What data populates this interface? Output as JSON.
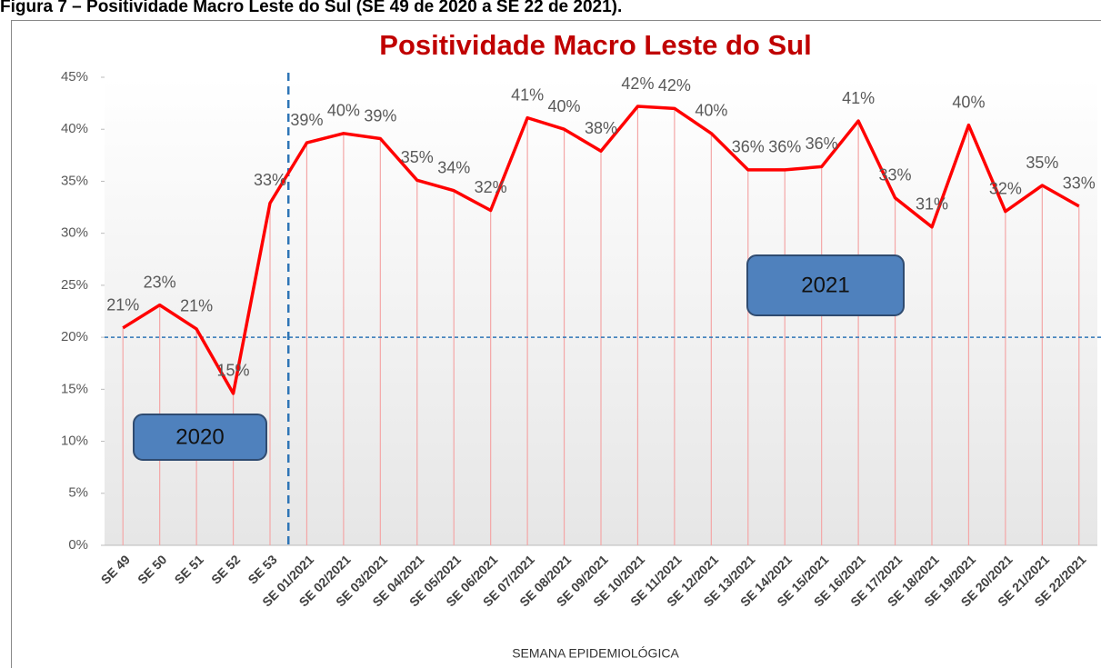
{
  "caption": "Figura 7 – Positividade Macro Leste do Sul (SE 49 de 2020 a SE 22 de 2021).",
  "chart_data": {
    "type": "line",
    "title": "Positividade  Macro Leste do Sul",
    "x_label": "SEMANA EPIDEMIOLÓGICA",
    "categories": [
      "SE 49",
      "SE 50",
      "SE 51",
      "SE 52",
      "SE 53",
      "SE 01/2021",
      "SE 02/2021",
      "SE 03/2021",
      "SE 04/2021",
      "SE 05/2021",
      "SE 06/2021",
      "SE 07/2021",
      "SE 08/2021",
      "SE 09/2021",
      "SE 10/2021",
      "SE 11/2021",
      "SE 12/2021",
      "SE 13/2021",
      "SE 14/2021",
      "SE 15/2021",
      "SE 16/2021",
      "SE 17/2021",
      "SE 18/2021",
      "SE 19/2021",
      "SE 20/2021",
      "SE 21/2021",
      "SE 22/2021"
    ],
    "values": [
      20.9,
      23.1,
      20.8,
      14.6,
      32.9,
      38.7,
      39.6,
      39.1,
      35.1,
      34.1,
      32.2,
      41.1,
      40.0,
      37.9,
      42.2,
      42.0,
      39.6,
      36.1,
      36.1,
      36.4,
      40.8,
      33.4,
      30.6,
      40.4,
      32.1,
      34.6,
      32.6
    ],
    "value_labels": [
      "21%",
      "23%",
      "21%",
      "15%",
      "33%",
      "39%",
      "40%",
      "39%",
      "35%",
      "34%",
      "32%",
      "41%",
      "40%",
      "38%",
      "42%",
      "42%",
      "40%",
      "36%",
      "36%",
      "36%",
      "41%",
      "33%",
      "31%",
      "40%",
      "32%",
      "35%",
      "33%"
    ],
    "color": "#ff0000",
    "ylim": [
      0,
      45
    ],
    "yticks": [
      {
        "value": 0,
        "label": "0%"
      },
      {
        "value": 5,
        "label": "5%"
      },
      {
        "value": 10,
        "label": "10%"
      },
      {
        "value": 15,
        "label": "15%"
      },
      {
        "value": 20,
        "label": "20%"
      },
      {
        "value": 25,
        "label": "25%"
      },
      {
        "value": 30,
        "label": "30%"
      },
      {
        "value": 35,
        "label": "35%"
      },
      {
        "value": 40,
        "label": "40%"
      },
      {
        "value": 45,
        "label": "45%"
      }
    ],
    "hline": 20,
    "annotations": [
      "2020",
      "2021"
    ]
  }
}
